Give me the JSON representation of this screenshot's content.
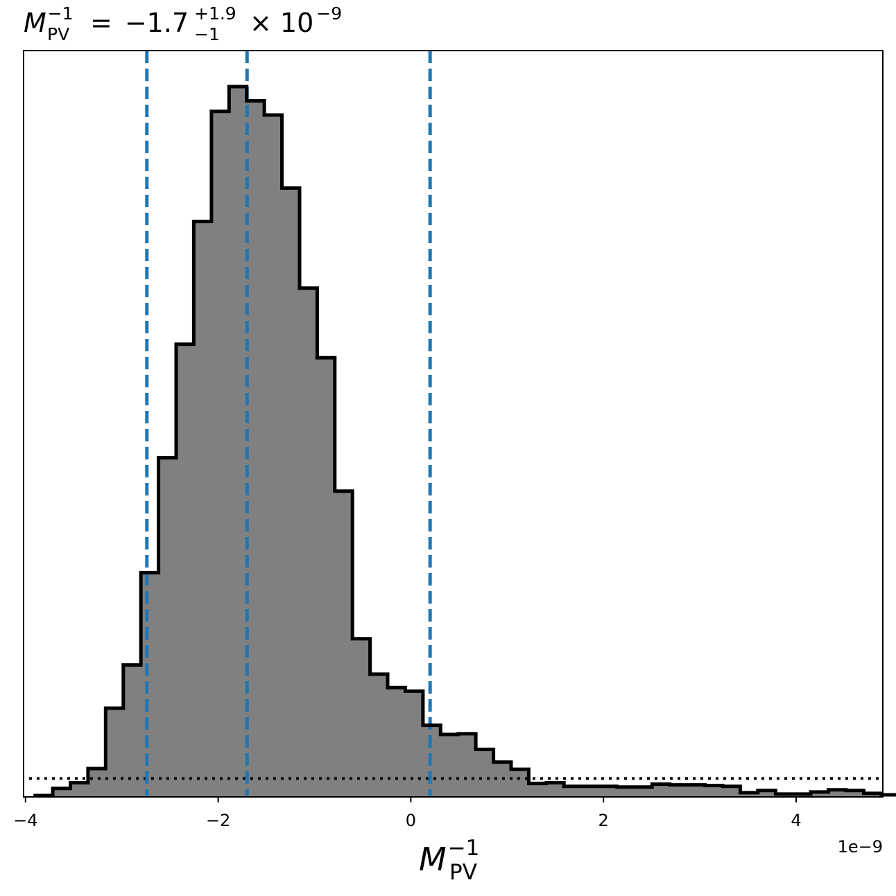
{
  "chart_data": {
    "type": "histogram",
    "title": {
      "symbol": "M",
      "subscript": "PV",
      "superscript": "−1",
      "equals": "=",
      "median": "−1.7",
      "upper_error": "+1.9",
      "lower_error": "−1",
      "multiplier": "× 10",
      "exponent": "−9"
    },
    "xlabel": {
      "symbol": "M",
      "subscript": "PV",
      "superscript": "−1"
    },
    "x_offset_label": "1e−9",
    "xlim": [
      -4.02,
      4.9
    ],
    "ylim": [
      0,
      1000
    ],
    "xticks": [
      {
        "value": -4,
        "label": "−4"
      },
      {
        "value": -2,
        "label": "−2"
      },
      {
        "value": 0,
        "label": "0"
      },
      {
        "value": 2,
        "label": "2"
      },
      {
        "value": 4,
        "label": "4"
      }
    ],
    "bins": {
      "start": -3.9,
      "width": 0.183,
      "counts": [
        1,
        11,
        19,
        39,
        124,
        185,
        315,
        477,
        637,
        810,
        965,
        1000,
        980,
        960,
        857,
        716,
        618,
        430,
        222,
        172,
        153,
        148,
        100,
        87,
        88,
        66,
        48,
        38,
        18,
        19,
        14,
        14,
        14,
        13,
        13,
        17,
        16,
        16,
        15,
        14,
        5,
        8,
        3,
        3,
        6,
        9,
        8,
        4,
        2,
        2,
        1
      ]
    },
    "quantile_lines": [
      {
        "name": "lower",
        "x": -2.74
      },
      {
        "name": "median",
        "x": -1.7
      },
      {
        "name": "upper",
        "x": 0.2
      }
    ],
    "reference_level": 25,
    "colors": {
      "fill": "#808080",
      "edge": "#000000",
      "quantile_line": "#1f77b4",
      "reference_line": "#000000"
    }
  }
}
